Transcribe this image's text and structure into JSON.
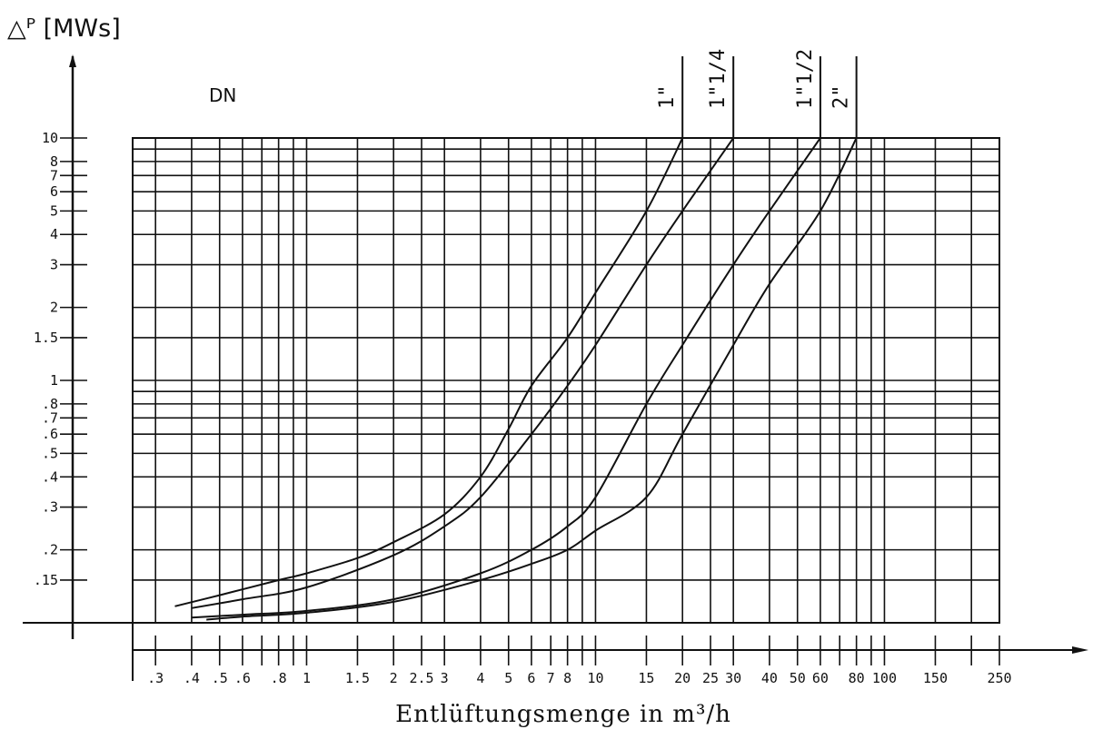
{
  "chart_data": {
    "type": "line",
    "title": "",
    "ylabel": "△ᴾ [MWs]",
    "xlabel": "Entlüftungsmenge in m³/h",
    "legend_title": "DN",
    "x_scale": "log",
    "y_scale": "log",
    "xlim": [
      0.25,
      250
    ],
    "ylim": [
      0.1,
      10
    ],
    "grid": true,
    "x_ticks": [
      {
        "v": 0.3,
        "label": ".3"
      },
      {
        "v": 0.4,
        "label": ".4"
      },
      {
        "v": 0.5,
        "label": ".5"
      },
      {
        "v": 0.6,
        "label": ".6"
      },
      {
        "v": 0.8,
        "label": ".8"
      },
      {
        "v": 1,
        "label": "1"
      },
      {
        "v": 1.5,
        "label": "1.5"
      },
      {
        "v": 2,
        "label": "2"
      },
      {
        "v": 2.5,
        "label": "2.5"
      },
      {
        "v": 3,
        "label": "3"
      },
      {
        "v": 4,
        "label": "4"
      },
      {
        "v": 5,
        "label": "5"
      },
      {
        "v": 6,
        "label": "6"
      },
      {
        "v": 7,
        "label": "7"
      },
      {
        "v": 8,
        "label": "8"
      },
      {
        "v": 10,
        "label": "10"
      },
      {
        "v": 15,
        "label": "15"
      },
      {
        "v": 20,
        "label": "20"
      },
      {
        "v": 25,
        "label": "25"
      },
      {
        "v": 30,
        "label": "30"
      },
      {
        "v": 40,
        "label": "40"
      },
      {
        "v": 50,
        "label": "50"
      },
      {
        "v": 60,
        "label": "60"
      },
      {
        "v": 80,
        "label": "80"
      },
      {
        "v": 100,
        "label": "100"
      },
      {
        "v": 150,
        "label": "150"
      },
      {
        "v": 250,
        "label": "250"
      }
    ],
    "x_grid": [
      0.3,
      0.4,
      0.5,
      0.6,
      0.7,
      0.8,
      0.9,
      1,
      1.5,
      2,
      2.5,
      3,
      4,
      5,
      6,
      7,
      8,
      9,
      10,
      15,
      20,
      25,
      30,
      40,
      50,
      60,
      70,
      80,
      90,
      100,
      150,
      200,
      250
    ],
    "y_ticks": [
      {
        "v": 10,
        "label": "10"
      },
      {
        "v": 8,
        "label": "8"
      },
      {
        "v": 7,
        "label": "7"
      },
      {
        "v": 6,
        "label": "6"
      },
      {
        "v": 5,
        "label": "5"
      },
      {
        "v": 4,
        "label": "4"
      },
      {
        "v": 3,
        "label": "3"
      },
      {
        "v": 2,
        "label": "2"
      },
      {
        "v": 1.5,
        "label": "1.5"
      },
      {
        "v": 1,
        "label": "1"
      },
      {
        "v": 0.8,
        "label": ".8"
      },
      {
        "v": 0.7,
        "label": ".7"
      },
      {
        "v": 0.6,
        "label": ".6"
      },
      {
        "v": 0.5,
        "label": ".5"
      },
      {
        "v": 0.4,
        "label": ".4"
      },
      {
        "v": 0.3,
        "label": ".3"
      },
      {
        "v": 0.2,
        "label": ".2"
      },
      {
        "v": 0.15,
        "label": ".15"
      }
    ],
    "y_grid": [
      10,
      9,
      8,
      7,
      6,
      5,
      4,
      3,
      2,
      1.5,
      1,
      0.9,
      0.8,
      0.7,
      0.6,
      0.5,
      0.4,
      0.3,
      0.2,
      0.15
    ],
    "series": [
      {
        "name": "1\"",
        "points": [
          [
            0.35,
            0.117
          ],
          [
            0.5,
            0.13
          ],
          [
            0.8,
            0.15
          ],
          [
            1,
            0.16
          ],
          [
            1.5,
            0.185
          ],
          [
            2,
            0.215
          ],
          [
            3,
            0.28
          ],
          [
            4,
            0.4
          ],
          [
            5,
            0.63
          ],
          [
            6,
            0.95
          ],
          [
            8,
            1.5
          ],
          [
            10,
            2.3
          ],
          [
            15,
            5
          ],
          [
            20,
            10
          ]
        ]
      },
      {
        "name": "1\"1/4",
        "points": [
          [
            0.4,
            0.115
          ],
          [
            0.6,
            0.125
          ],
          [
            1,
            0.14
          ],
          [
            2,
            0.19
          ],
          [
            3,
            0.25
          ],
          [
            4,
            0.33
          ],
          [
            6,
            0.6
          ],
          [
            8,
            0.95
          ],
          [
            10,
            1.4
          ],
          [
            15,
            3
          ],
          [
            20,
            5
          ],
          [
            30,
            10
          ]
        ]
      },
      {
        "name": "1\"1/2",
        "points": [
          [
            0.4,
            0.105
          ],
          [
            0.6,
            0.108
          ],
          [
            1,
            0.112
          ],
          [
            2,
            0.125
          ],
          [
            4,
            0.16
          ],
          [
            6,
            0.2
          ],
          [
            8,
            0.25
          ],
          [
            10,
            0.33
          ],
          [
            15,
            0.8
          ],
          [
            20,
            1.4
          ],
          [
            30,
            3
          ],
          [
            40,
            5
          ],
          [
            60,
            10
          ]
        ]
      },
      {
        "name": "2\"",
        "points": [
          [
            0.45,
            0.103
          ],
          [
            0.6,
            0.106
          ],
          [
            1,
            0.11
          ],
          [
            2,
            0.122
          ],
          [
            4,
            0.15
          ],
          [
            6,
            0.175
          ],
          [
            8,
            0.2
          ],
          [
            10,
            0.24
          ],
          [
            15,
            0.33
          ],
          [
            20,
            0.6
          ],
          [
            30,
            1.4
          ],
          [
            40,
            2.5
          ],
          [
            60,
            5
          ],
          [
            80,
            10
          ]
        ]
      }
    ]
  }
}
